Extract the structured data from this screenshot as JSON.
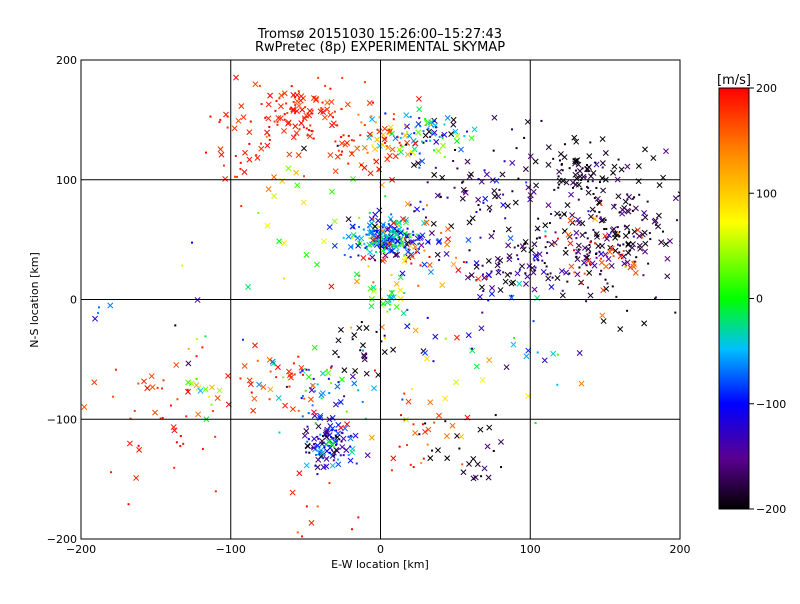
{
  "chart_data": {
    "type": "scatter",
    "title": "Tromsø 20151030 15:26:00–15:27:43",
    "subtitle": "RwPretec (8p) EXPERIMENTAL SKYMAP",
    "xlabel": "E-W location [km]",
    "ylabel": "N-S location [km]",
    "xlim": [
      -200,
      200
    ],
    "ylim": [
      -200,
      200
    ],
    "x_ticks": [
      -200,
      -100,
      0,
      100,
      200
    ],
    "y_ticks": [
      -200,
      -100,
      0,
      100,
      200
    ],
    "grid": true,
    "colorbar": {
      "label": "[m/s]",
      "min": -200,
      "max": 200,
      "ticks": [
        -200,
        -100,
        0,
        100,
        200
      ],
      "colormap": "rainbow: black-violet-blue-cyan-green-yellow-orange-red"
    },
    "markers": [
      "x",
      "dot"
    ],
    "clusters": [
      {
        "cx": 0,
        "cy": 52,
        "sx": 12,
        "sy": 8,
        "n": 170,
        "v": -55,
        "vs": 45,
        "w": "light"
      },
      {
        "cx": 15,
        "cy": 48,
        "sx": 14,
        "sy": 9,
        "n": 60,
        "v": -110,
        "vs": 40,
        "w": "light"
      },
      {
        "cx": 30,
        "cy": 140,
        "sx": 16,
        "sy": 8,
        "n": 70,
        "v": -40,
        "vs": 70,
        "w": "light"
      },
      {
        "cx": 5,
        "cy": 125,
        "sx": 12,
        "sy": 12,
        "n": 40,
        "v": 120,
        "vs": 70,
        "w": "light"
      },
      {
        "cx": -55,
        "cy": 155,
        "sx": 18,
        "sy": 14,
        "n": 90,
        "v": 185,
        "vs": 15,
        "w": "dark"
      },
      {
        "cx": -20,
        "cy": 135,
        "sx": 25,
        "sy": 20,
        "n": 60,
        "v": 180,
        "vs": 20,
        "w": "dark"
      },
      {
        "cx": -95,
        "cy": 130,
        "sx": 12,
        "sy": 20,
        "n": 30,
        "v": 185,
        "vs": 15,
        "w": "dark"
      },
      {
        "cx": 145,
        "cy": 55,
        "sx": 28,
        "sy": 30,
        "n": 240,
        "v": -185,
        "vs": 25,
        "w": "dark"
      },
      {
        "cx": 135,
        "cy": 110,
        "sx": 12,
        "sy": 10,
        "n": 50,
        "v": -195,
        "vs": 10,
        "w": "dark"
      },
      {
        "cx": 90,
        "cy": 30,
        "sx": 20,
        "sy": 15,
        "n": 70,
        "v": -150,
        "vs": 40,
        "w": "dark"
      },
      {
        "cx": 65,
        "cy": 85,
        "sx": 30,
        "sy": 20,
        "n": 60,
        "v": -150,
        "vs": 50,
        "w": "dark"
      },
      {
        "cx": 150,
        "cy": 40,
        "sx": 15,
        "sy": 15,
        "n": 35,
        "v": 175,
        "vs": 25,
        "w": "dark"
      },
      {
        "cx": 20,
        "cy": 30,
        "sx": 25,
        "sy": 20,
        "n": 50,
        "v": 160,
        "vs": 40,
        "w": "dark"
      },
      {
        "cx": 50,
        "cy": 110,
        "sx": 40,
        "sy": 25,
        "n": 40,
        "v": -180,
        "vs": 25,
        "w": "dark"
      },
      {
        "cx": -35,
        "cy": -120,
        "sx": 8,
        "sy": 10,
        "n": 110,
        "v": -120,
        "vs": 60,
        "w": "light"
      },
      {
        "cx": -35,
        "cy": -75,
        "sx": 15,
        "sy": 15,
        "n": 50,
        "v": -60,
        "vs": 50,
        "w": "light"
      },
      {
        "cx": -10,
        "cy": -40,
        "sx": 15,
        "sy": 12,
        "n": 25,
        "v": -190,
        "vs": 15,
        "w": "dark"
      },
      {
        "cx": 5,
        "cy": 0,
        "sx": 8,
        "sy": 10,
        "n": 25,
        "v": 0,
        "vs": 40,
        "w": "light"
      },
      {
        "cx": -70,
        "cy": -70,
        "sx": 15,
        "sy": 15,
        "n": 35,
        "v": 180,
        "vs": 20,
        "w": "dark"
      },
      {
        "cx": -140,
        "cy": -100,
        "sx": 25,
        "sy": 30,
        "n": 45,
        "v": 185,
        "vs": 15,
        "w": "dark"
      },
      {
        "cx": -120,
        "cy": -75,
        "sx": 6,
        "sy": 8,
        "n": 12,
        "v": 40,
        "vs": 50,
        "w": "light"
      },
      {
        "cx": 60,
        "cy": -130,
        "sx": 15,
        "sy": 12,
        "n": 25,
        "v": -190,
        "vs": 15,
        "w": "dark"
      },
      {
        "cx": 25,
        "cy": -110,
        "sx": 20,
        "sy": 20,
        "n": 25,
        "v": 175,
        "vs": 20,
        "w": "dark"
      },
      {
        "cx": 35,
        "cy": -60,
        "sx": 40,
        "sy": 40,
        "n": 30,
        "v": 100,
        "vs": 90,
        "w": "dark"
      },
      {
        "cx": -60,
        "cy": 70,
        "sx": 30,
        "sy": 40,
        "n": 20,
        "v": 40,
        "vs": 80,
        "w": "light"
      },
      {
        "cx": -110,
        "cy": -30,
        "sx": 40,
        "sy": 30,
        "n": 15,
        "v": -100,
        "vs": 80,
        "w": "dark"
      },
      {
        "cx": -40,
        "cy": -170,
        "sx": 20,
        "sy": 15,
        "n": 10,
        "v": 185,
        "vs": 15,
        "w": "dark"
      },
      {
        "cx": 60,
        "cy": -20,
        "sx": 30,
        "sy": 20,
        "n": 15,
        "v": -120,
        "vs": 50,
        "w": "dark"
      },
      {
        "cx": 120,
        "cy": -40,
        "sx": 20,
        "sy": 20,
        "n": 8,
        "v": -50,
        "vs": 100,
        "w": "dark"
      }
    ]
  }
}
